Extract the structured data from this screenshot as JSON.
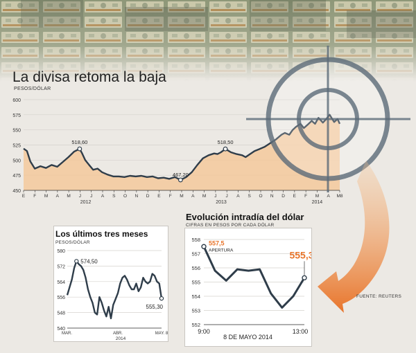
{
  "colors": {
    "line": "#2f3d4a",
    "fill": "#f6c493",
    "accent": "#e8742a",
    "grid": "#d5d2cd",
    "target": "#5b6a78"
  },
  "main": {
    "title": "La divisa retoma la baja",
    "unit": "PESOS/DÓLAR"
  },
  "inset_left": {
    "title": "Los últimos tres meses",
    "unit": "PESOS/DÓLAR"
  },
  "inset_right": {
    "title": "Evolución intradía del dólar",
    "unit": "CIFRAS EN PESOS POR CADA DÓLAR",
    "caption": "8 DE MAYO 2014"
  },
  "source": "FUENTE: REUTERS",
  "chart_data": [
    {
      "type": "area",
      "title": "La divisa retoma la baja",
      "ylabel": "PESOS/DÓLAR",
      "ylim": [
        450,
        600
      ],
      "yticks": [
        450,
        475,
        500,
        525,
        550,
        575,
        600
      ],
      "grid": true,
      "x_ticks": [
        "E",
        "F",
        "M",
        "A",
        "M",
        "J",
        "J",
        "A",
        "S",
        "O",
        "N",
        "D",
        "E",
        "F",
        "M",
        "A",
        "M",
        "J",
        "J",
        "A",
        "S",
        "O",
        "N",
        "D",
        "E",
        "F",
        "M",
        "A",
        "M8"
      ],
      "x_years": [
        {
          "label": "2012",
          "at": 5.5
        },
        {
          "label": "2013",
          "at": 17.5
        },
        {
          "label": "2014",
          "at": 26
        }
      ],
      "x": [
        0,
        0.3,
        0.6,
        1.0,
        1.5,
        2.0,
        2.5,
        3.0,
        3.5,
        4.0,
        4.5,
        5.0,
        5.2,
        5.5,
        5.8,
        6.2,
        6.6,
        7.0,
        7.5,
        8.0,
        8.5,
        9.0,
        9.5,
        10.0,
        10.5,
        11.0,
        11.5,
        12.0,
        12.5,
        13.0,
        13.5,
        14.0,
        14.5,
        15.0,
        15.5,
        16.0,
        16.5,
        17.0,
        17.3,
        17.6,
        18.0,
        18.5,
        19.0,
        19.5,
        19.8,
        20.2,
        20.6,
        21.0,
        21.5,
        22.0,
        22.5,
        23.0,
        23.3,
        23.7,
        24.0,
        24.3,
        24.7,
        25.0,
        25.3,
        25.7,
        26.0,
        26.3,
        26.7,
        27.0,
        27.3,
        27.7,
        28.0,
        28.2
      ],
      "y": [
        519,
        515,
        498,
        486,
        490,
        487,
        492,
        489,
        497,
        505,
        514,
        518.6,
        512,
        500,
        493,
        484,
        486,
        480,
        476,
        473,
        473,
        472,
        474,
        473,
        474,
        472,
        473,
        470,
        471,
        469,
        472,
        467.2,
        472,
        480,
        492,
        503,
        508,
        511,
        510,
        513,
        518.5,
        513,
        510,
        508,
        505,
        510,
        515,
        518,
        522,
        528,
        534,
        542,
        545,
        542,
        550,
        555,
        560,
        553,
        558,
        565,
        560,
        570,
        562,
        568,
        575,
        563,
        568,
        560
      ],
      "annotations": [
        {
          "x": 5.0,
          "y": 518.6,
          "label": "518,60"
        },
        {
          "x": 14.0,
          "y": 467.2,
          "label": "467,20"
        },
        {
          "x": 18.0,
          "y": 518.5,
          "label": "518,50"
        }
      ]
    },
    {
      "type": "line",
      "title": "Los últimos tres meses",
      "ylabel": "PESOS/DÓLAR",
      "ylim": [
        540,
        580
      ],
      "yticks": [
        540,
        548,
        556,
        564,
        572,
        580
      ],
      "grid": true,
      "x_ticks": [
        {
          "label": "MAR.",
          "at": 0
        },
        {
          "label": "ABR.",
          "at": 22
        },
        {
          "label": "MAY. 8",
          "at": 41
        }
      ],
      "x_caption": "2014",
      "x": [
        0,
        1,
        2,
        3,
        4,
        5,
        6,
        7,
        8,
        9,
        10,
        11,
        12,
        13,
        14,
        15,
        16,
        17,
        18,
        19,
        20,
        21,
        22,
        23,
        24,
        25,
        26,
        27,
        28,
        29,
        30,
        31,
        32,
        33,
        34,
        35,
        36,
        37,
        38,
        39,
        40,
        41
      ],
      "y": [
        557,
        561,
        565,
        571,
        574.5,
        573,
        572,
        570,
        566,
        560,
        556,
        553,
        548,
        547,
        556,
        553,
        549,
        546,
        551,
        545,
        552,
        555,
        558,
        563,
        566,
        567,
        565,
        562,
        560,
        560,
        563,
        559,
        561,
        566,
        564,
        563,
        564,
        568,
        567,
        564,
        563,
        555.3
      ],
      "annotations": [
        {
          "x": 4,
          "y": 574.5,
          "label": "574,50"
        },
        {
          "x": 41,
          "y": 555.3,
          "label": "555,30"
        }
      ]
    },
    {
      "type": "line",
      "title": "Evolución intradía del dólar",
      "ylabel": "CIFRAS EN PESOS POR CADA DÓLAR",
      "ylim": [
        552,
        558
      ],
      "yticks": [
        552,
        553,
        554,
        555,
        556,
        557,
        558
      ],
      "grid": true,
      "x_ticks": [
        "9:00",
        "13:00"
      ],
      "x_caption": "8 DE MAYO 2014",
      "x": [
        0,
        1,
        2,
        3,
        4,
        5,
        6,
        7,
        8,
        9
      ],
      "y": [
        557.5,
        555.8,
        555.1,
        555.9,
        555.8,
        555.9,
        554.2,
        553.2,
        554.0,
        555.3
      ],
      "annotations": [
        {
          "x": 0,
          "y": 557.5,
          "label": "557,5",
          "sublabel": "APERTURA"
        },
        {
          "x": 9,
          "y": 555.3,
          "label": "555,3"
        }
      ]
    }
  ]
}
